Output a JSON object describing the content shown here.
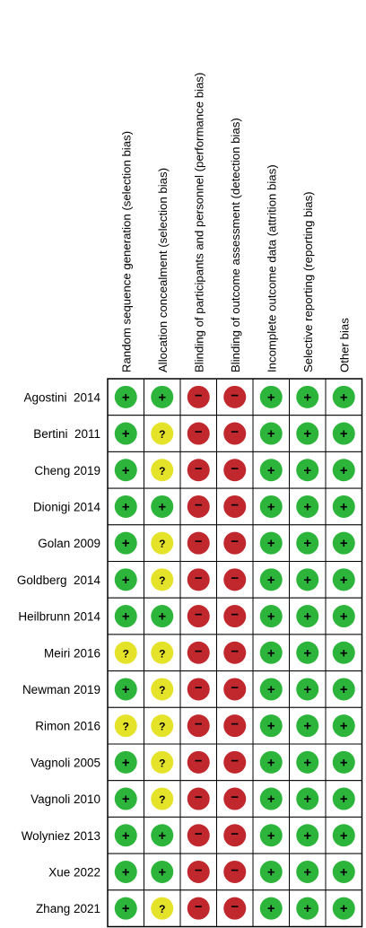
{
  "domains": [
    "Random sequence generation (selection bias)",
    "Allocation concealment (selection bias)",
    "Blinding of participants and personnel (performance bias)",
    "Blinding of outcome assessment (detection bias)",
    "Incomplete outcome data (attrition bias)",
    "Selective reporting (reporting bias)",
    "Other bias"
  ],
  "studies": [
    {
      "name": "Agostini  2014",
      "ratings": [
        "low",
        "low",
        "high",
        "high",
        "low",
        "low",
        "low"
      ]
    },
    {
      "name": "Bertini  2011",
      "ratings": [
        "low",
        "unclear",
        "high",
        "high",
        "low",
        "low",
        "low"
      ]
    },
    {
      "name": "Cheng 2019",
      "ratings": [
        "low",
        "unclear",
        "high",
        "high",
        "low",
        "low",
        "low"
      ]
    },
    {
      "name": "Dionigi 2014",
      "ratings": [
        "low",
        "low",
        "high",
        "high",
        "low",
        "low",
        "low"
      ]
    },
    {
      "name": "Golan 2009",
      "ratings": [
        "low",
        "unclear",
        "high",
        "high",
        "low",
        "low",
        "low"
      ]
    },
    {
      "name": "Goldberg  2014",
      "ratings": [
        "low",
        "unclear",
        "high",
        "high",
        "low",
        "low",
        "low"
      ]
    },
    {
      "name": "Heilbrunn 2014",
      "ratings": [
        "low",
        "low",
        "high",
        "high",
        "low",
        "low",
        "low"
      ]
    },
    {
      "name": "Meiri 2016",
      "ratings": [
        "unclear",
        "unclear",
        "high",
        "high",
        "low",
        "low",
        "low"
      ]
    },
    {
      "name": "Newman 2019",
      "ratings": [
        "low",
        "unclear",
        "high",
        "high",
        "low",
        "low",
        "low"
      ]
    },
    {
      "name": "Rimon 2016",
      "ratings": [
        "unclear",
        "unclear",
        "high",
        "high",
        "low",
        "low",
        "low"
      ]
    },
    {
      "name": "Vagnoli 2005",
      "ratings": [
        "low",
        "unclear",
        "high",
        "high",
        "low",
        "low",
        "low"
      ]
    },
    {
      "name": "Vagnoli 2010",
      "ratings": [
        "low",
        "unclear",
        "high",
        "high",
        "low",
        "low",
        "low"
      ]
    },
    {
      "name": "Wolyniez 2013",
      "ratings": [
        "low",
        "low",
        "high",
        "high",
        "low",
        "low",
        "low"
      ]
    },
    {
      "name": "Xue 2022",
      "ratings": [
        "low",
        "low",
        "high",
        "high",
        "low",
        "low",
        "low"
      ]
    },
    {
      "name": "Zhang 2021",
      "ratings": [
        "low",
        "unclear",
        "high",
        "high",
        "low",
        "low",
        "low"
      ]
    }
  ],
  "rating_styles": {
    "low": {
      "symbol": "+",
      "color": "#2db43a",
      "meaning": "low risk of bias"
    },
    "unclear": {
      "symbol": "?",
      "color": "#e5e22a",
      "meaning": "unclear risk of bias"
    },
    "high": {
      "symbol": "−",
      "color": "#c0282d",
      "meaning": "high risk of bias"
    }
  }
}
